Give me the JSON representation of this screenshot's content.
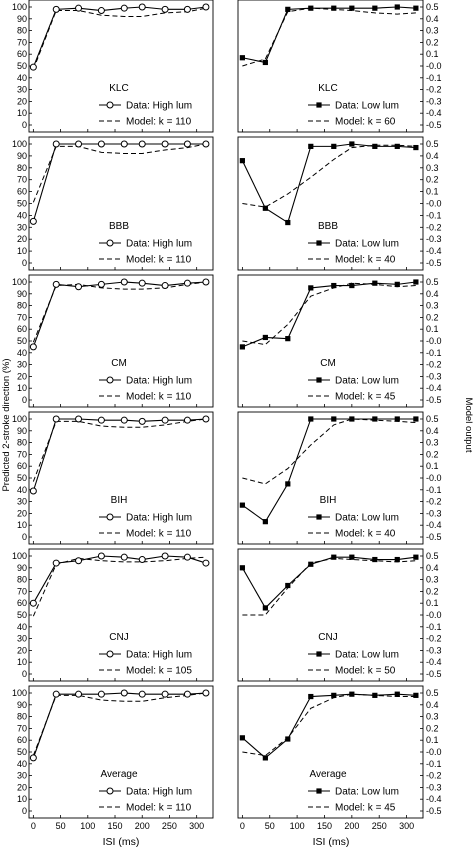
{
  "chart_data": {
    "type": "line",
    "xlabel": "ISI (ms)",
    "ylabel_left": "Predicted 2-stroke direction (%)",
    "ylabel_right": "Model output",
    "xlim": [
      -8,
      330
    ],
    "x_ticks": [
      0,
      50,
      100,
      150,
      200,
      250,
      300
    ],
    "left_ylim": [
      0,
      100
    ],
    "left_ticks": [
      0,
      10,
      20,
      30,
      40,
      50,
      60,
      70,
      80,
      90,
      100
    ],
    "right_ylim": [
      -0.5,
      0.5
    ],
    "right_ticks": [
      "-0.5",
      "-0.4",
      "-0.3",
      "-0.2",
      "-0.1",
      "-0.0",
      "0.1",
      "0.2",
      "0.3",
      "0.4",
      "0.5"
    ],
    "isi": [
      0,
      42,
      83,
      125,
      167,
      200,
      242,
      283,
      317
    ],
    "legend_data_high": "Data: High lum",
    "legend_data_low": "Data: Low lum",
    "panels": [
      {
        "subject": "KLC",
        "high": {
          "data": [
            49,
            98,
            99,
            97,
            99,
            100,
            98,
            98,
            100
          ],
          "model_label": "Model: k = 110",
          "model": [
            47,
            97,
            97,
            93,
            92,
            92,
            95,
            96,
            99
          ]
        },
        "low": {
          "data": [
            57,
            53,
            98,
            99,
            99,
            99,
            99,
            100,
            99
          ],
          "model_label": "Model: k = 60",
          "model": [
            50,
            56,
            96,
            99,
            98,
            97,
            95,
            94,
            95
          ]
        }
      },
      {
        "subject": "BBB",
        "high": {
          "data": [
            35,
            100,
            100,
            100,
            100,
            100,
            100,
            100,
            100
          ],
          "model_label": "Model: k = 110",
          "model": [
            51,
            98,
            98,
            93,
            92,
            92,
            95,
            97,
            100
          ]
        },
        "low": {
          "data": [
            86,
            46,
            34,
            98,
            98,
            100,
            98,
            98,
            97
          ],
          "model_label": "Model: k = 40",
          "model": [
            50,
            47,
            58,
            72,
            87,
            97,
            99,
            99,
            98
          ]
        }
      },
      {
        "subject": "CM",
        "high": {
          "data": [
            45,
            98,
            96,
            98,
            100,
            99,
            97,
            99,
            100
          ],
          "model_label": "Model: k = 110",
          "model": [
            49,
            97,
            98,
            95,
            94,
            94,
            95,
            98,
            100
          ]
        },
        "low": {
          "data": [
            45,
            53,
            52,
            95,
            97,
            97,
            99,
            98,
            100
          ],
          "model_label": "Model: k = 45",
          "model": [
            50,
            47,
            64,
            88,
            95,
            99,
            98,
            96,
            97
          ]
        }
      },
      {
        "subject": "BIH",
        "high": {
          "data": [
            39,
            100,
            100,
            99,
            99,
            98,
            99,
            99,
            100
          ],
          "model_label": "Model: k = 110",
          "model": [
            47,
            98,
            98,
            94,
            93,
            93,
            95,
            98,
            100
          ]
        },
        "low": {
          "data": [
            27,
            13,
            45,
            100,
            100,
            100,
            100,
            100,
            100
          ],
          "model_label": "Model: k = 40",
          "model": [
            50,
            45,
            58,
            78,
            95,
            100,
            99,
            98,
            97
          ]
        }
      },
      {
        "subject": "CNJ",
        "high": {
          "data": [
            60,
            94,
            96,
            100,
            99,
            97,
            100,
            99,
            94
          ],
          "model_label": "Model: k = 105",
          "model": [
            49,
            93,
            98,
            96,
            95,
            95,
            96,
            98,
            99
          ]
        },
        "low": {
          "data": [
            90,
            56,
            75,
            93,
            99,
            99,
            97,
            97,
            99
          ],
          "model_label": "Model: k = 50",
          "model": [
            50,
            50,
            73,
            94,
            98,
            97,
            96,
            95,
            96
          ]
        }
      },
      {
        "subject": "Average",
        "high": {
          "data": [
            45,
            99,
            99,
            99,
            100,
            99,
            99,
            99,
            100
          ],
          "model_label": "Model: k = 110",
          "model": [
            47,
            98,
            98,
            94,
            93,
            93,
            96,
            98,
            100
          ]
        },
        "low": {
          "data": [
            62,
            45,
            61,
            97,
            98,
            99,
            98,
            99,
            98
          ],
          "model_label": "Model: k = 45",
          "model": [
            50,
            47,
            62,
            87,
            96,
            99,
            98,
            97,
            97
          ]
        }
      }
    ]
  }
}
